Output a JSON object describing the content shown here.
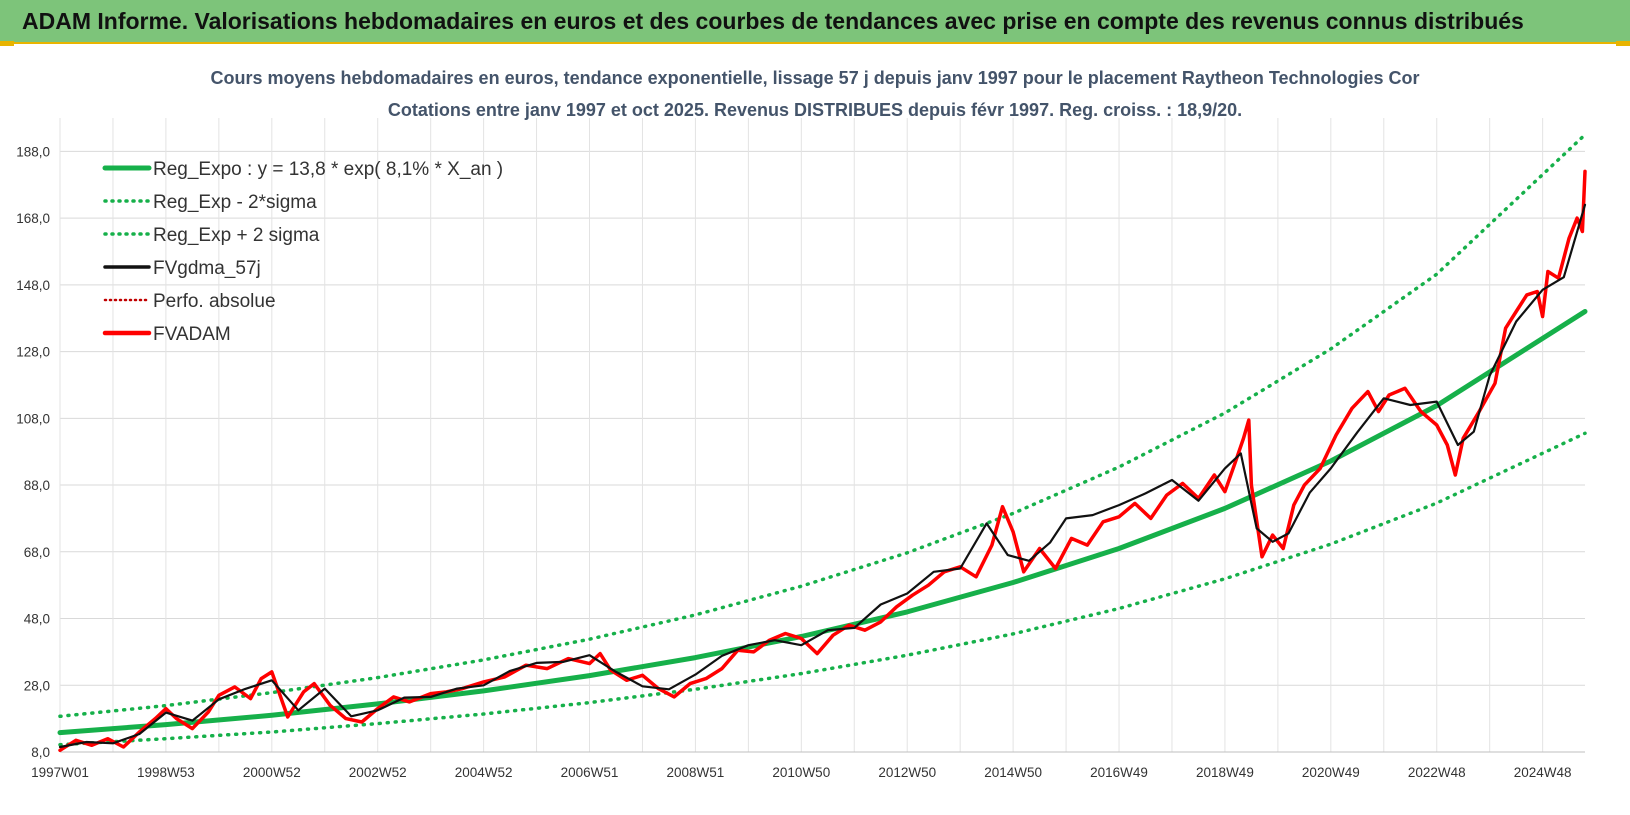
{
  "header": {
    "title": "ADAM Informe. Valorisations hebdomadaires en euros et des courbes de tendances avec prise en compte des revenus connus distribués"
  },
  "colors": {
    "header_bg": "#7dc47a",
    "accent_yellow": "#e8b400",
    "trend_green": "#16b04a",
    "fvadam_red": "#ff0000",
    "fvgdma_black": "#111111",
    "perfo_red": "#c00000"
  },
  "chart_data": {
    "type": "line",
    "title": "Cours moyens hebdomadaires en euros, tendance exponentielle, lissage 57 j depuis janv 1997 pour le placement Raytheon Technologies Cor",
    "subtitle": "Cotations entre janv 1997 et oct 2025. Revenus DISTRIBUES depuis févr 1997. Reg. croiss. : 18,9/20.",
    "xlabel": "",
    "ylabel": "",
    "ylim": [
      8,
      198
    ],
    "xlim": [
      1997.0,
      2025.8
    ],
    "grid": true,
    "legend_position": "top-left",
    "y_ticks": [
      "8,0",
      "28,0",
      "48,0",
      "68,0",
      "88,0",
      "108,0",
      "128,0",
      "148,0",
      "168,0",
      "188,0"
    ],
    "x_ticks": [
      "1997W01",
      "1998W53",
      "2000W52",
      "2002W52",
      "2004W52",
      "2006W51",
      "2008W51",
      "2010W50",
      "2012W50",
      "2014W50",
      "2016W49",
      "2018W49",
      "2020W49",
      "2022W48",
      "2024W48"
    ],
    "legend": [
      "Reg_Expo : y = 13,8 * exp( 8,1% *  X_an )",
      "Reg_Exp - 2*sigma",
      "Reg_Exp + 2 sigma",
      "FVgdma_57j",
      "Perfo. absolue",
      "FVADAM"
    ],
    "series": [
      {
        "name": "Reg_Expo : y = 13,8 * exp( 8,1% *  X_an )",
        "style": "solid-thick",
        "color": "#16b04a",
        "x": [
          1997.0,
          1999.0,
          2001.0,
          2003.0,
          2005.0,
          2007.0,
          2009.0,
          2011.0,
          2013.0,
          2015.0,
          2017.0,
          2019.0,
          2021.0,
          2023.0,
          2025.8
        ],
        "y": [
          13.8,
          16.2,
          19.0,
          22.4,
          26.3,
          30.9,
          36.3,
          42.6,
          50.0,
          58.8,
          69.0,
          81.0,
          95.2,
          111.8,
          140.0
        ]
      },
      {
        "name": "Reg_Exp - 2*sigma",
        "style": "dotted",
        "color": "#16b04a",
        "x": [
          1997.0,
          1999.0,
          2001.0,
          2003.0,
          2005.0,
          2007.0,
          2009.0,
          2011.0,
          2013.0,
          2015.0,
          2017.0,
          2019.0,
          2021.0,
          2023.0,
          2025.8
        ],
        "y": [
          10.2,
          12.0,
          14.0,
          16.5,
          19.4,
          22.8,
          26.8,
          31.5,
          37.0,
          43.4,
          51.0,
          59.9,
          70.3,
          82.6,
          103.5
        ]
      },
      {
        "name": "Reg_Exp + 2 sigma",
        "style": "dotted",
        "color": "#16b04a",
        "x": [
          1997.0,
          1999.0,
          2001.0,
          2003.0,
          2005.0,
          2007.0,
          2009.0,
          2011.0,
          2013.0,
          2015.0,
          2017.0,
          2019.0,
          2021.0,
          2023.0,
          2025.8
        ],
        "y": [
          18.7,
          21.9,
          25.8,
          30.3,
          35.6,
          41.8,
          49.1,
          57.7,
          67.7,
          79.5,
          93.4,
          109.6,
          128.8,
          151.2,
          193.0
        ]
      },
      {
        "name": "FVgdma_57j",
        "style": "solid",
        "color": "#111111",
        "x": [
          1997.0,
          1997.5,
          1998.0,
          1998.5,
          1999.0,
          1999.5,
          2000.0,
          2000.5,
          2001.0,
          2001.5,
          2002.0,
          2002.5,
          2003.0,
          2003.5,
          2004.0,
          2004.5,
          2005.0,
          2005.5,
          2006.0,
          2006.5,
          2007.0,
          2007.5,
          2008.0,
          2008.5,
          2009.0,
          2009.5,
          2010.0,
          2010.5,
          2011.0,
          2011.5,
          2012.0,
          2012.5,
          2013.0,
          2013.5,
          2014.0,
          2014.5,
          2014.9,
          2015.3,
          2015.7,
          2016.0,
          2016.5,
          2017.0,
          2017.5,
          2018.0,
          2018.5,
          2019.0,
          2019.3,
          2019.6,
          2019.9,
          2020.2,
          2020.6,
          2021.0,
          2021.5,
          2022.0,
          2022.5,
          2023.0,
          2023.4,
          2023.7,
          2024.0,
          2024.5,
          2025.0,
          2025.4,
          2025.8
        ],
        "y": [
          9.5,
          11.0,
          10.6,
          13.4,
          19.8,
          17.4,
          23.8,
          26.9,
          29.5,
          20.5,
          27.0,
          18.7,
          20.5,
          24.3,
          24.5,
          27.0,
          28.0,
          32.3,
          34.7,
          35.0,
          37.0,
          32.0,
          27.7,
          26.8,
          31.2,
          36.8,
          40.0,
          41.5,
          40.0,
          44.5,
          45.2,
          52.2,
          55.5,
          62.0,
          63.0,
          76.5,
          67.0,
          65.3,
          70.8,
          78.0,
          79.0,
          82.0,
          85.5,
          89.5,
          83.3,
          93.0,
          97.5,
          75.0,
          71.0,
          73.5,
          85.7,
          93.0,
          103.8,
          114.0,
          112.0,
          113.0,
          100.0,
          104.0,
          120.8,
          137.0,
          146.5,
          150.3,
          172.0
        ]
      },
      {
        "name": "Perfo. absolue",
        "style": "dotted",
        "color": "#c00000",
        "x": [
          1997.0,
          1999.0,
          2000.5,
          2002.0,
          2004.0,
          2006.0,
          2008.0,
          2010.0,
          2012.0,
          2014.0,
          2014.9,
          2016.0,
          2018.0,
          2019.3,
          2019.8,
          2020.6,
          2022.0,
          2023.4,
          2024.5,
          2025.8
        ],
        "y": [
          9.0,
          19.0,
          27.0,
          24.0,
          25.0,
          34.0,
          29.0,
          40.0,
          45.0,
          62.0,
          79.0,
          73.0,
          86.0,
          105.0,
          67.0,
          85.0,
          114.0,
          92.0,
          140.0,
          176.0
        ]
      },
      {
        "name": "FVADAM",
        "style": "solid-thick",
        "color": "#ff0000",
        "x": [
          1997.0,
          1997.3,
          1997.6,
          1997.9,
          1998.2,
          1998.5,
          1998.8,
          1999.0,
          1999.2,
          1999.5,
          1999.8,
          2000.0,
          2000.3,
          2000.6,
          2000.8,
          2001.0,
          2001.3,
          2001.6,
          2001.8,
          2002.1,
          2002.4,
          2002.7,
          2003.0,
          2003.3,
          2003.6,
          2004.0,
          2004.3,
          2004.6,
          2005.0,
          2005.4,
          2005.8,
          2006.2,
          2006.6,
          2007.0,
          2007.2,
          2007.4,
          2007.7,
          2008.0,
          2008.3,
          2008.6,
          2008.9,
          2009.2,
          2009.5,
          2009.8,
          2010.1,
          2010.4,
          2010.7,
          2011.0,
          2011.3,
          2011.6,
          2011.9,
          2012.2,
          2012.5,
          2012.8,
          2013.1,
          2013.4,
          2013.7,
          2014.0,
          2014.3,
          2014.6,
          2014.8,
          2015.0,
          2015.2,
          2015.5,
          2015.8,
          2016.1,
          2016.4,
          2016.7,
          2017.0,
          2017.3,
          2017.6,
          2017.9,
          2018.2,
          2018.5,
          2018.8,
          2019.0,
          2019.2,
          2019.35,
          2019.45,
          2019.5,
          2019.7,
          2019.9,
          2020.1,
          2020.3,
          2020.5,
          2020.8,
          2021.1,
          2021.4,
          2021.7,
          2021.9,
          2022.1,
          2022.4,
          2022.7,
          2023.0,
          2023.2,
          2023.35,
          2023.5,
          2023.8,
          2024.1,
          2024.3,
          2024.5,
          2024.7,
          2024.9,
          2025.0,
          2025.1,
          2025.3,
          2025.5,
          2025.65,
          2025.75,
          2025.8
        ],
        "y": [
          8.5,
          11.5,
          10.0,
          12.0,
          9.5,
          14.0,
          18.0,
          21.0,
          18.0,
          15.0,
          20.0,
          25.0,
          27.5,
          24.0,
          30.0,
          32.0,
          18.5,
          26.0,
          28.5,
          22.0,
          18.0,
          17.0,
          21.0,
          24.5,
          23.0,
          25.5,
          26.0,
          27.0,
          29.0,
          30.5,
          34.0,
          33.0,
          36.0,
          34.5,
          37.5,
          32.5,
          29.5,
          31.0,
          27.0,
          24.5,
          28.5,
          30.0,
          33.0,
          38.5,
          38.0,
          41.5,
          43.5,
          42.0,
          37.5,
          43.0,
          46.0,
          44.5,
          47.0,
          51.5,
          55.0,
          58.0,
          62.0,
          63.5,
          60.5,
          70.0,
          81.5,
          74.0,
          62.0,
          69.0,
          63.0,
          72.0,
          70.0,
          77.0,
          78.5,
          82.5,
          78.0,
          85.0,
          88.5,
          84.0,
          91.0,
          86.0,
          95.0,
          102.0,
          107.5,
          88.0,
          66.5,
          73.0,
          69.0,
          82.0,
          88.0,
          93.0,
          103.0,
          111.0,
          116.0,
          110.0,
          115.0,
          117.0,
          110.0,
          106.0,
          100.0,
          91.0,
          102.0,
          110.0,
          118.5,
          135.0,
          140.0,
          145.0,
          146.0,
          138.5,
          152.0,
          150.0,
          162.0,
          168.0,
          164.0,
          182.0
        ]
      }
    ]
  }
}
